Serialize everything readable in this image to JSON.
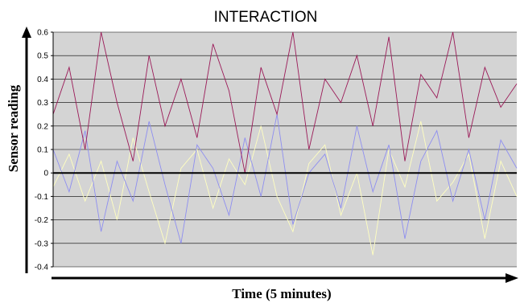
{
  "chart_data": {
    "type": "line",
    "title": "INTERACTION",
    "xlabel": "Time (5 minutes)",
    "ylabel": "Sensor reading",
    "ylim": [
      -0.4,
      0.6
    ],
    "yticks": [
      "-0.4",
      "-0.3",
      "-0.2",
      "-0.1",
      "0",
      "0.1",
      "0.2",
      "0.3",
      "0.4",
      "0.5",
      "0.6"
    ],
    "grid": true,
    "legend": "none",
    "background_color": "#d4d4d4",
    "series": [
      {
        "color": "#ffffc0",
        "values": [
          -0.06,
          0.08,
          -0.12,
          0.05,
          -0.2,
          0.15,
          -0.08,
          -0.3,
          0.02,
          0.1,
          -0.15,
          0.06,
          -0.05,
          0.2,
          -0.1,
          -0.25,
          0.04,
          0.12,
          -0.18,
          0.0,
          -0.35,
          0.1,
          -0.06,
          0.22,
          -0.12,
          -0.04,
          0.08,
          -0.28,
          0.05,
          -0.1
        ]
      },
      {
        "color": "#8e8ef0",
        "values": [
          0.1,
          -0.08,
          0.18,
          -0.25,
          0.05,
          -0.12,
          0.22,
          -0.05,
          -0.3,
          0.12,
          0.02,
          -0.18,
          0.15,
          -0.1,
          0.25,
          -0.22,
          0.0,
          0.08,
          -0.15,
          0.2,
          -0.08,
          0.12,
          -0.28,
          0.05,
          0.18,
          -0.12,
          0.1,
          -0.2,
          0.14,
          0.02
        ]
      },
      {
        "color": "#9b1a58",
        "values": [
          0.25,
          0.45,
          0.1,
          0.6,
          0.3,
          0.05,
          0.5,
          0.2,
          0.4,
          0.15,
          0.55,
          0.35,
          0.0,
          0.45,
          0.25,
          0.6,
          0.1,
          0.4,
          0.3,
          0.5,
          0.2,
          0.58,
          0.05,
          0.42,
          0.32,
          0.6,
          0.15,
          0.45,
          0.28,
          0.38
        ]
      },
      {
        "color": "#000000",
        "values": [
          0,
          0,
          0,
          0,
          0,
          0,
          0,
          0,
          0,
          0,
          0,
          0,
          0,
          0,
          0,
          0,
          0,
          0,
          0,
          0,
          0,
          0,
          0,
          0,
          0,
          0,
          0,
          0,
          0,
          0
        ]
      }
    ]
  }
}
